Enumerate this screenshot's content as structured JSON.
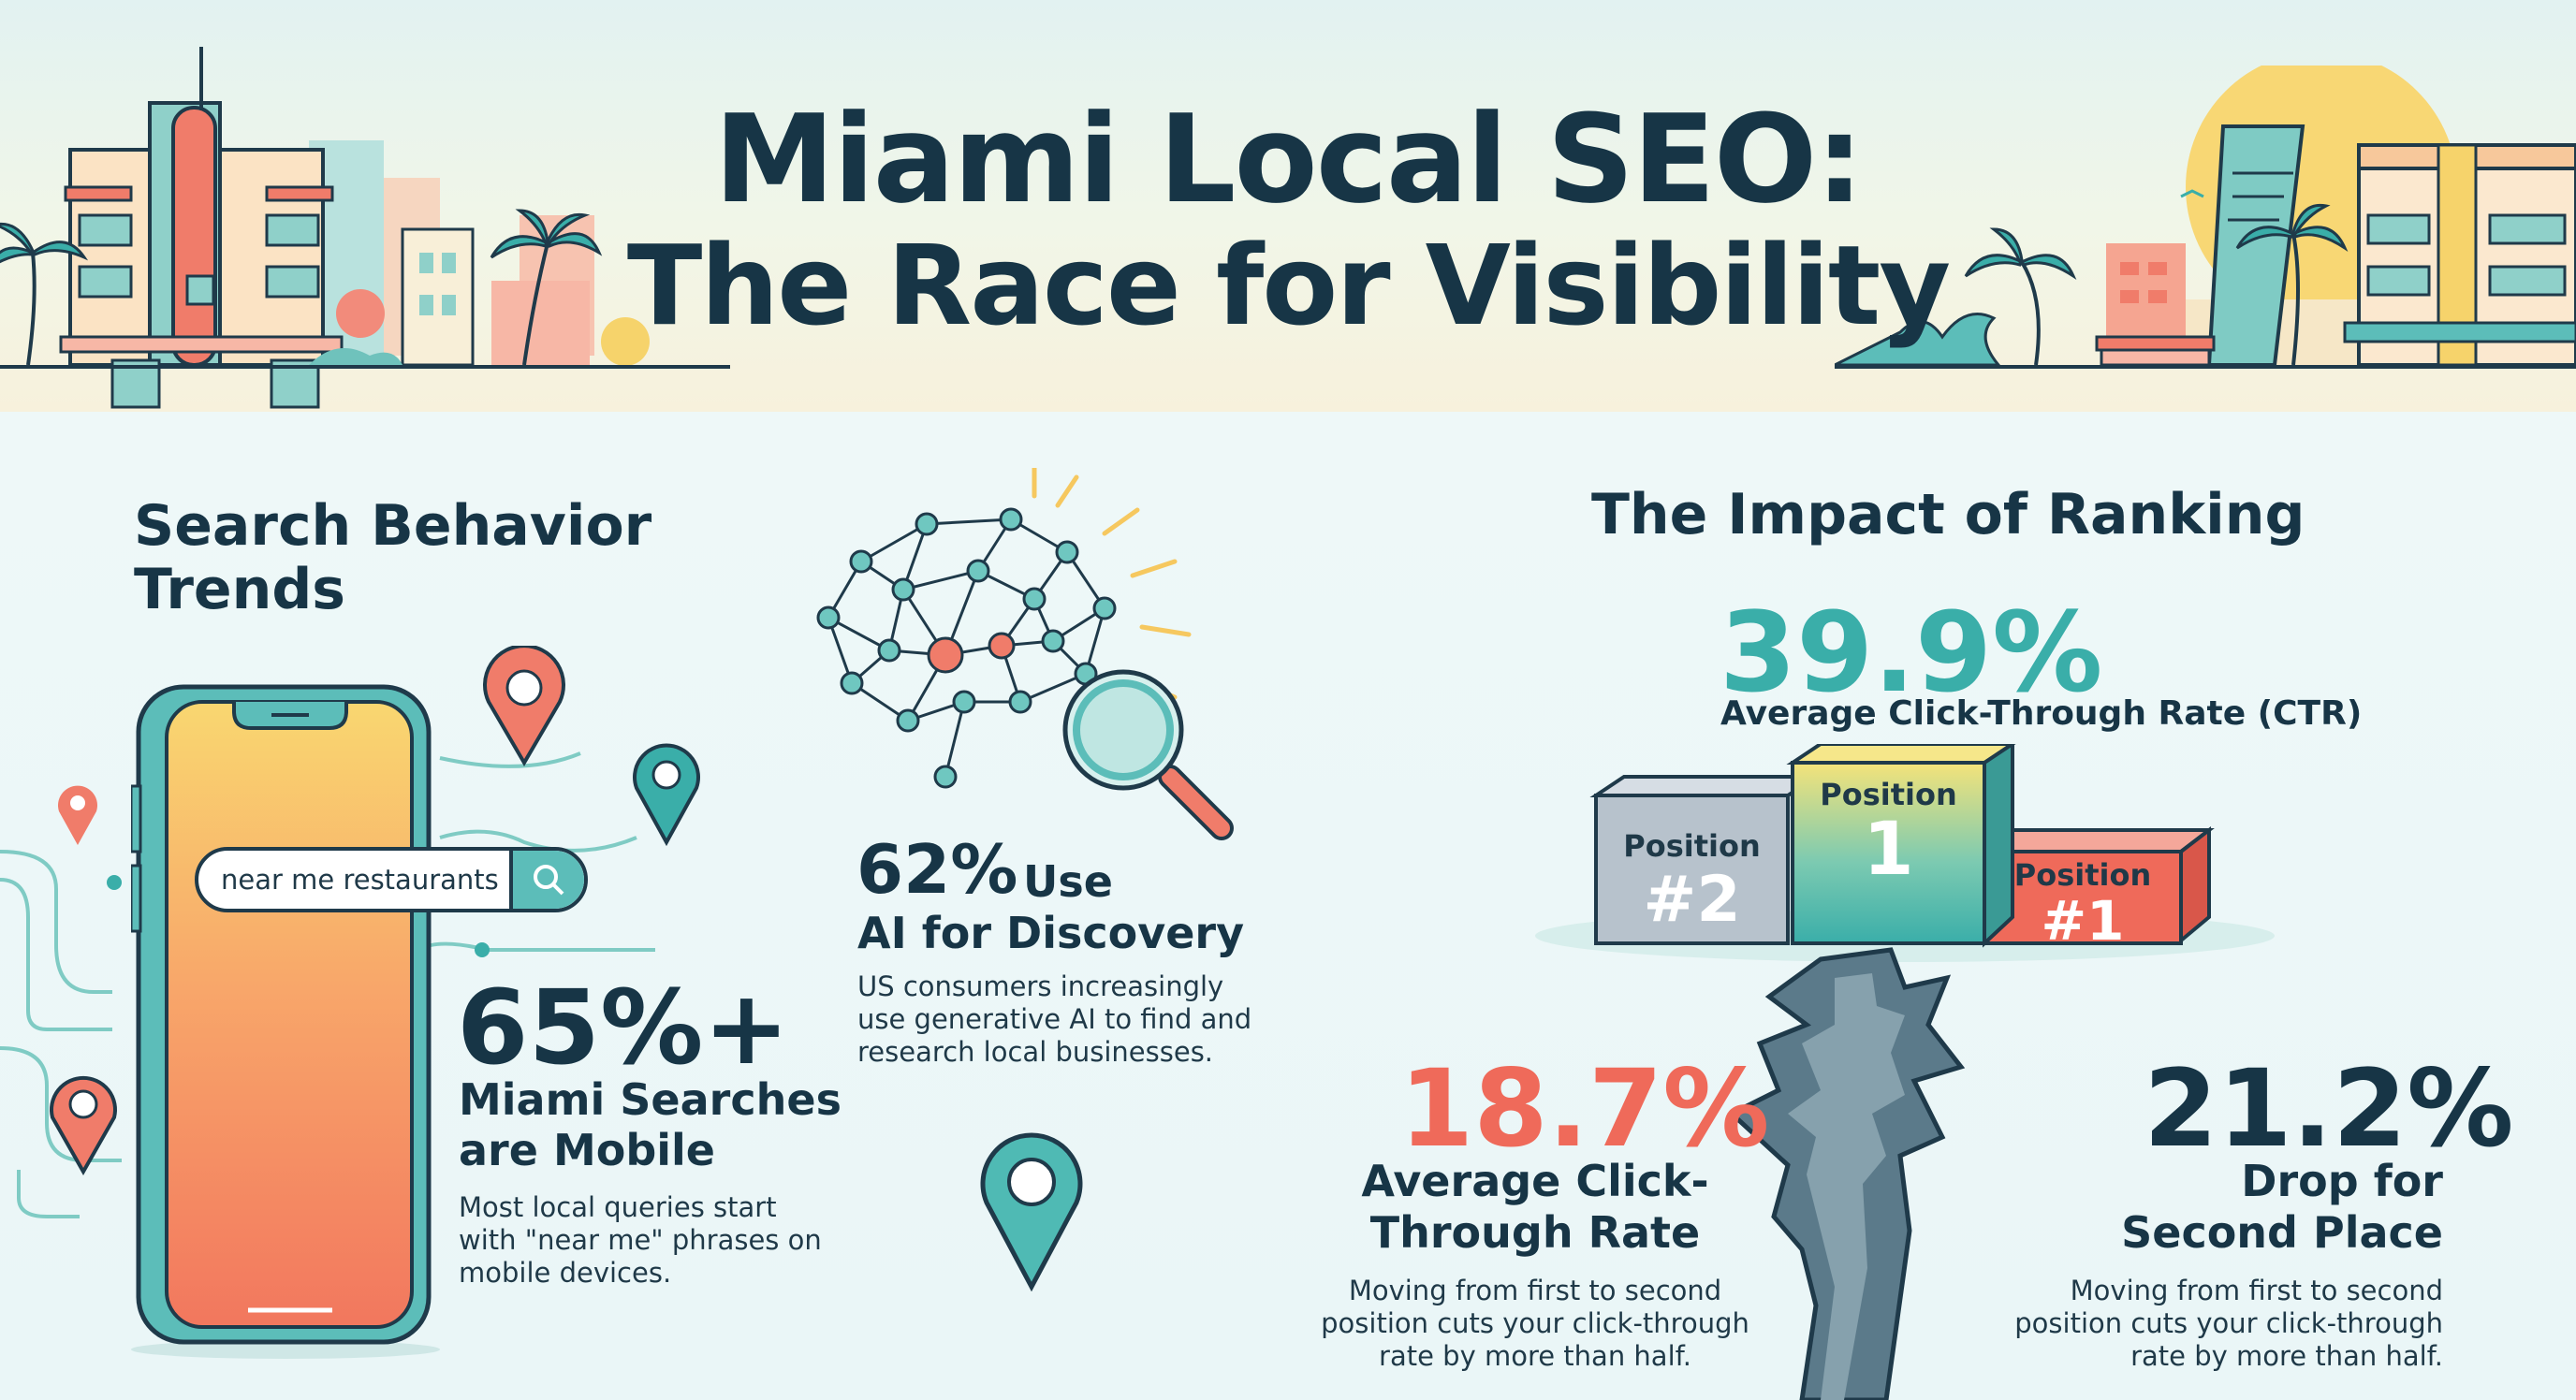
{
  "header": {
    "title_line1": "Miami Local SEO:",
    "title_line2": "The Race for Visibility"
  },
  "search_trends": {
    "heading_line1": "Search Behavior",
    "heading_line2": "Trends",
    "search_query": "near me restaurants",
    "mobile_stat": "65%+",
    "mobile_label_line1": "Miami Searches",
    "mobile_label_line2": "are Mobile",
    "mobile_desc_line1": "Most local queries start",
    "mobile_desc_line2": "with \"near me\" phrases on",
    "mobile_desc_line3": "mobile devices.",
    "ai_stat": "62%",
    "ai_label_a": "Use",
    "ai_label_b": "AI for Discovery",
    "ai_desc_line1": "US consumers increasingly",
    "ai_desc_line2": "use generative AI to find and",
    "ai_desc_line3": "research local businesses."
  },
  "ranking": {
    "heading": "The Impact of Ranking",
    "top_stat": "39.9%",
    "top_label": "Average Click-Through Rate (CTR)",
    "podium": {
      "left_word": "Position",
      "left_num": "#2",
      "center_word": "Position",
      "center_num": "1",
      "right_word": "Position",
      "right_num": "#1"
    },
    "left_stat": "18.7%",
    "left_label_line1": "Average Click-",
    "left_label_line2": "Through Rate",
    "left_desc_line1": "Moving from first to second",
    "left_desc_line2": "position cuts your click-through",
    "left_desc_line3": "rate by more than half.",
    "right_stat": "21.2%",
    "right_label_line1": "Drop for",
    "right_label_line2": "Second Place",
    "right_desc_line1": "Moving from first to second",
    "right_desc_line2": "position cuts your click-through",
    "right_desc_line3": "rate by more than half."
  },
  "colors": {
    "navy": "#173546",
    "teal": "#3aaea9",
    "coral": "#ef6a5a",
    "yellow": "#f6d36b"
  }
}
